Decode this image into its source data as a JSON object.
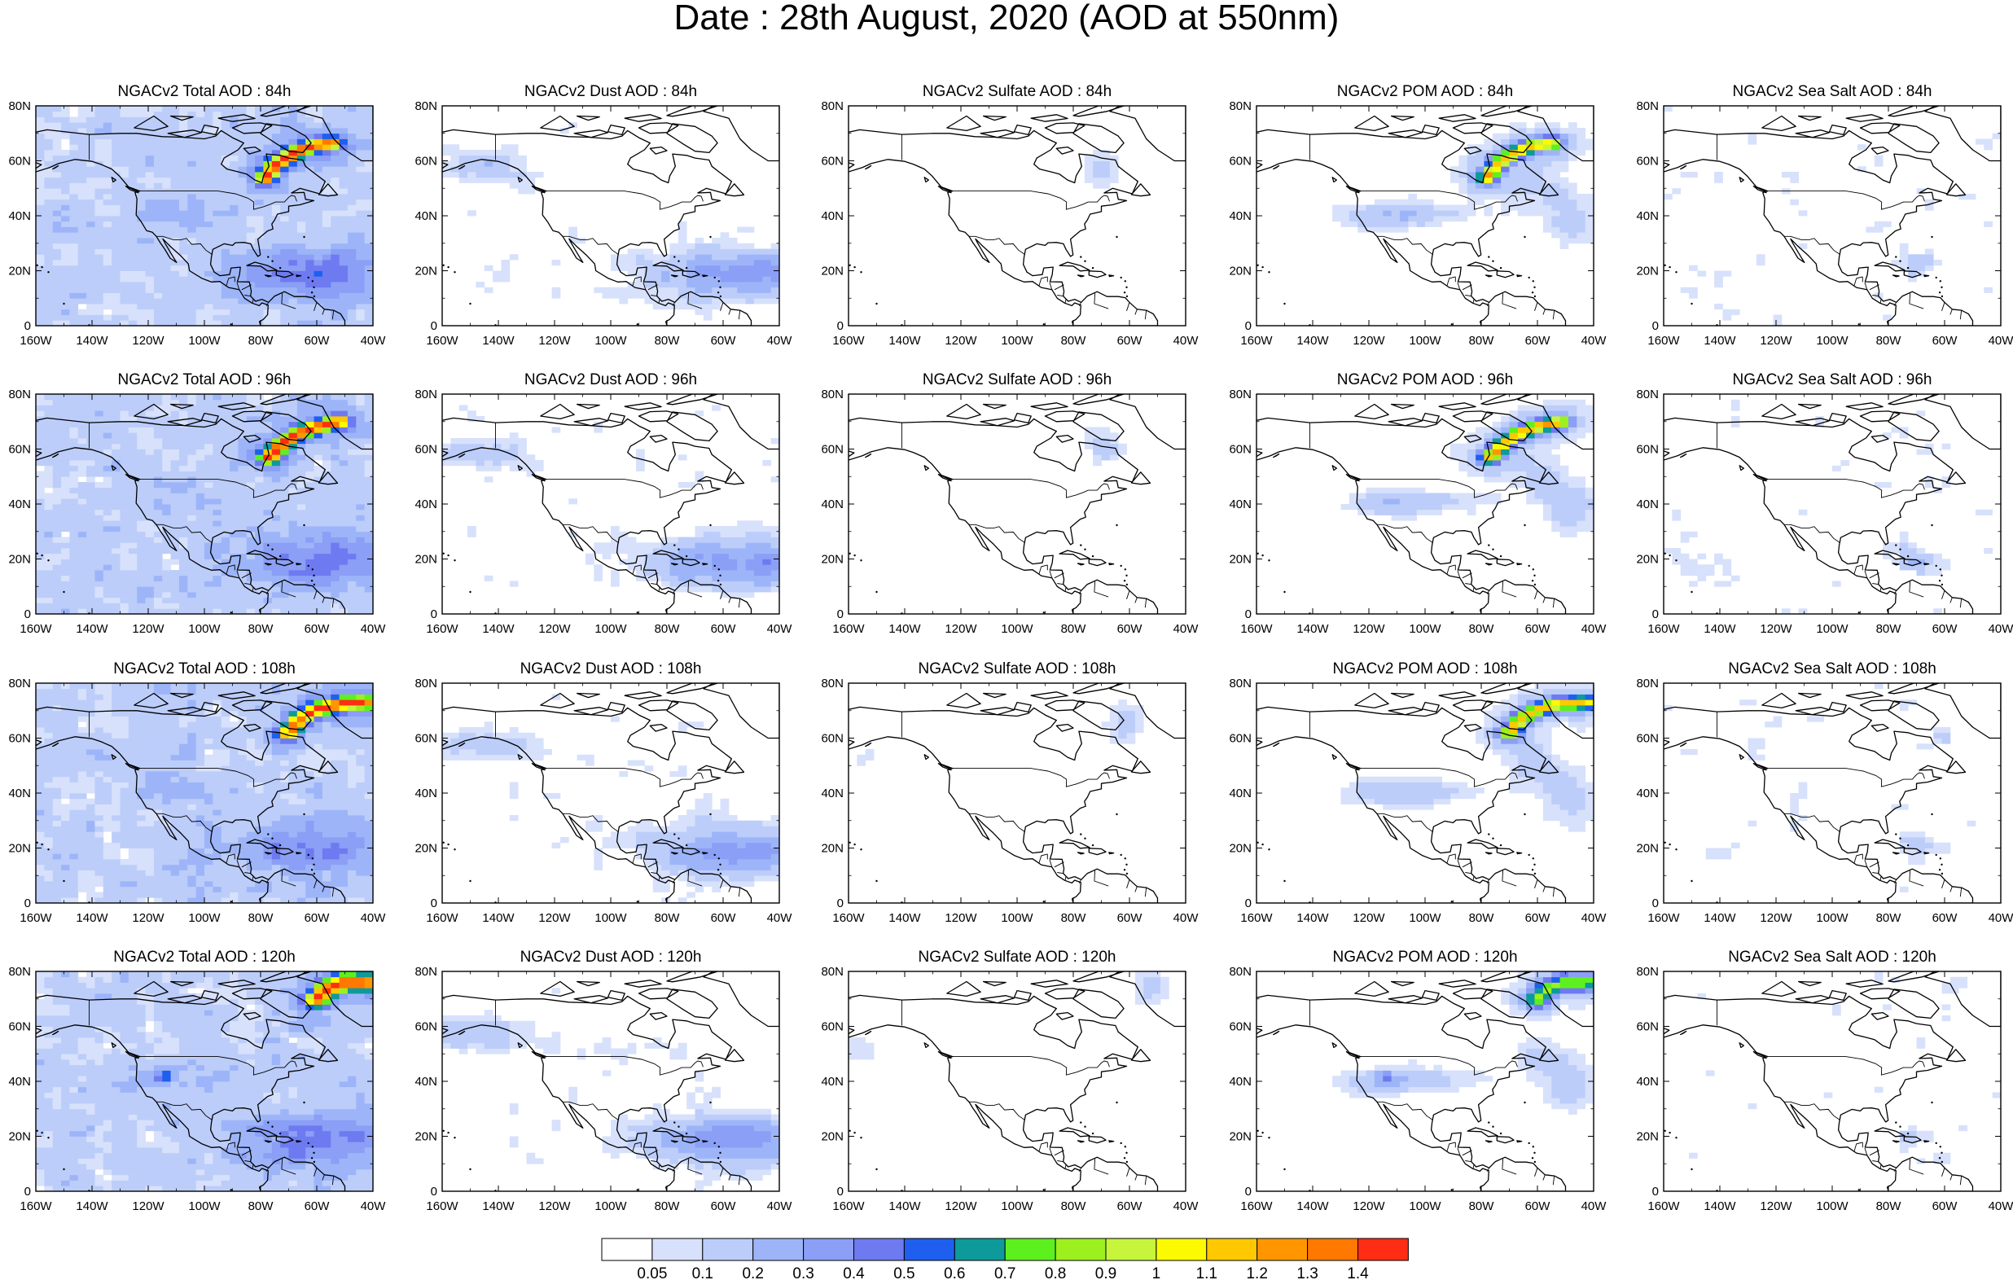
{
  "title": "Date : 28th August, 2020 (AOD at 550nm)",
  "species": [
    {
      "key": "total",
      "label": "NGACv2 Total AOD"
    },
    {
      "key": "dust",
      "label": "NGACv2 Dust AOD"
    },
    {
      "key": "sulfate",
      "label": "NGACv2 Sulfate AOD"
    },
    {
      "key": "pom",
      "label": "NGACv2 POM AOD"
    },
    {
      "key": "seasalt",
      "label": "NGACv2 Sea Salt AOD"
    }
  ],
  "panels": [
    [
      "NGACv2 Total AOD : 84h",
      "NGACv2 Dust AOD : 84h",
      "NGACv2 Sulfate AOD : 84h",
      "NGACv2 POM AOD : 84h",
      "NGACv2 Sea Salt AOD : 84h"
    ],
    [
      "NGACv2 Total AOD : 96h",
      "NGACv2 Dust AOD : 96h",
      "NGACv2 Sulfate AOD : 96h",
      "NGACv2 POM AOD : 96h",
      "NGACv2 Sea Salt AOD : 96h"
    ],
    [
      "NGACv2 Total AOD : 108h",
      "NGACv2 Dust AOD : 108h",
      "NGACv2 Sulfate AOD : 108h",
      "NGACv2 POM AOD : 108h",
      "NGACv2 Sea Salt AOD : 108h"
    ],
    [
      "NGACv2 Total AOD : 120h",
      "NGACv2 Dust AOD : 120h",
      "NGACv2 Sulfate AOD : 120h",
      "NGACv2 POM AOD : 120h",
      "NGACv2 Sea Salt  AOD : 120h"
    ]
  ],
  "forecast_hours": [
    84,
    96,
    108,
    120
  ],
  "lon_ticks": [
    "160W",
    "140W",
    "120W",
    "100W",
    "80W",
    "60W",
    "40W"
  ],
  "lat_ticks": [
    "0",
    "20N",
    "40N",
    "60N",
    "80N"
  ],
  "lon_range": [
    -160,
    -40
  ],
  "lat_range": [
    0,
    80
  ],
  "colorbar": {
    "labels": [
      "0.05",
      "0.1",
      "0.2",
      "0.3",
      "0.4",
      "0.5",
      "0.6",
      "0.7",
      "0.8",
      "0.9",
      "1",
      "1.1",
      "1.2",
      "1.3",
      "1.4"
    ],
    "colors": [
      "#ffffff",
      "#d7e1fb",
      "#bccdfa",
      "#9db5f8",
      "#8a9ff5",
      "#6e7af0",
      "#1e5ff0",
      "#0e9a9a",
      "#5ef01e",
      "#9cf01e",
      "#c6f53c",
      "#fcfa00",
      "#ffc800",
      "#ff9600",
      "#ff7800",
      "#ff2d14"
    ]
  },
  "colors": {
    "coast": "#000000",
    "frame": "#000000",
    "background": "#ffffff"
  }
}
